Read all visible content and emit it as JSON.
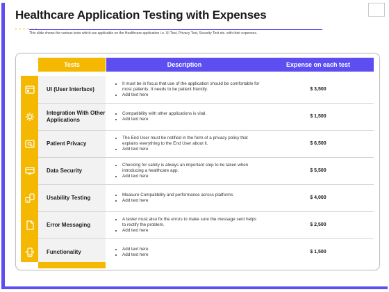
{
  "title": "Healthcare Application Testing with Expenses",
  "subtitle": "This slide shows the various tests which are applicable on the Healthcare application i.e. UI Test, Privacy Test, Security Test etc. with their expenses.",
  "decoration_dots": "• • • • • •",
  "colors": {
    "accent": "#5c4ef0",
    "highlight": "#f5b800"
  },
  "table": {
    "headers": {
      "tests": "Tests",
      "description": "Description",
      "expense": "Expense on each test"
    },
    "rows": [
      {
        "icon": "browser-window-icon",
        "test": "UI (User Interface)",
        "bullets": [
          "It must be in focus that use of the application should be comfortable for most patients. It needs to be patient friendly.",
          "Add text here"
        ],
        "expense": "$ 3,500"
      },
      {
        "icon": "gear-icon",
        "test": "Integration With Other Applications",
        "bullets": [
          "Compatibility with other applications is vital.",
          "Add text here"
        ],
        "expense": "$ 1,500"
      },
      {
        "icon": "magnifier-icon",
        "test": "Patient Privacy",
        "bullets": [
          "The End User must be notified in the form of a privacy policy that explains everything to the End User about it.",
          "Add text here"
        ],
        "expense": "$ 6,500"
      },
      {
        "icon": "monitor-icon",
        "test": "Data Security",
        "bullets": [
          "Checking for safety is always an important step to be taken when introducing a healthcare app.",
          "Add text here"
        ],
        "expense": "$ 5,500"
      },
      {
        "icon": "devices-icon",
        "test": "Usability Testing",
        "bullets": [
          "Measure Compatibility and performance across platforms",
          "Add text here"
        ],
        "expense": "$ 4,000"
      },
      {
        "icon": "document-icon",
        "test": "Error Messaging",
        "bullets": [
          "A tester must also fix the errors to make sure the message sent helps to rectify the problem.",
          "Add text here"
        ],
        "expense": "$ 2,500"
      },
      {
        "icon": "mobile-phone-icon",
        "test": "Functionality",
        "bullets": [
          "Add text here",
          "Add text here"
        ],
        "expense": "$ 1,500"
      }
    ]
  }
}
